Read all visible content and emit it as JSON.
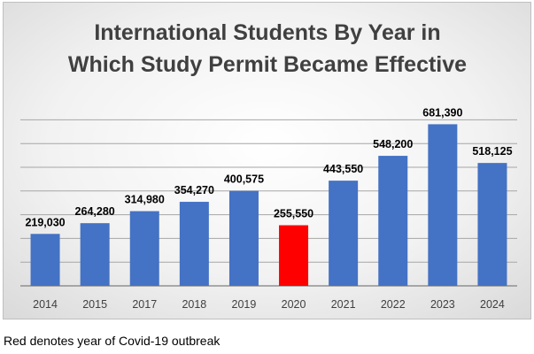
{
  "chart_data": {
    "type": "bar",
    "title": [
      "International Students By Year in",
      "Which Study Permit Became Effective"
    ],
    "categories": [
      "2014",
      "2015",
      "2017",
      "2018",
      "2019",
      "2020",
      "2021",
      "2022",
      "2023",
      "2024"
    ],
    "values": [
      219030,
      264280,
      314980,
      354270,
      400575,
      255550,
      443550,
      548200,
      681390,
      518125
    ],
    "value_labels": [
      "219,030",
      "264,280",
      "314,980",
      "354,270",
      "400,575",
      "255,550",
      "443,550",
      "548,200",
      "681,390",
      "518,125"
    ],
    "highlight_category": "2020",
    "ylim": [
      0,
      700000
    ],
    "grid": true,
    "xlabel": "",
    "ylabel": "",
    "colors": {
      "bar": "#4472c4",
      "highlight": "#ff0000",
      "grid": "#a6a6a6"
    }
  },
  "footnote": "Red denotes year of Covid-19 outbreak"
}
